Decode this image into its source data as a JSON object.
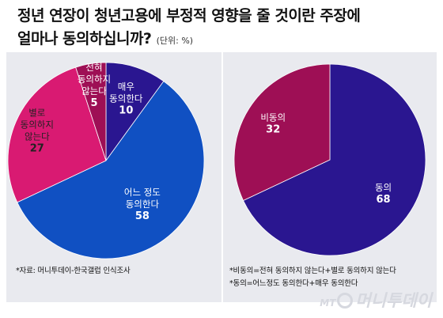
{
  "title_line1": "정년 연장이 청년고용에 부정적 영향을 줄 것이란 주장에",
  "title_line2": "얼마나 동의하십니까?",
  "unit": "(단위: %)",
  "chart_data": [
    {
      "type": "pie",
      "name": "",
      "start_angle_deg": 0,
      "direction": "clockwise",
      "slices": [
        {
          "label_lines": [
            "매우",
            "동의한다"
          ],
          "value": 10,
          "color": "#2a1690",
          "text_color": "#ffffff"
        },
        {
          "label_lines": [
            "어느 정도",
            "동의한다"
          ],
          "value": 58,
          "color": "#1050c2",
          "text_color": "#ffffff"
        },
        {
          "label_lines": [
            "별로",
            "동의하지",
            "않는다"
          ],
          "value": 27,
          "color": "#d91a72",
          "text_color": "#222222"
        },
        {
          "label_lines": [
            "전혀",
            "동의하지",
            "않는다"
          ],
          "value": 5,
          "color": "#9e0f55",
          "text_color": "#ffffff"
        }
      ]
    },
    {
      "type": "pie",
      "name": "",
      "start_angle_deg": 0,
      "direction": "clockwise",
      "slices": [
        {
          "label_lines": [
            "동의"
          ],
          "value": 68,
          "color": "#2a1690",
          "text_color": "#ffffff"
        },
        {
          "label_lines": [
            "비동의"
          ],
          "value": 32,
          "color": "#9e0f55",
          "text_color": "#ffffff"
        }
      ]
    }
  ],
  "footnotes": {
    "source": "*자료: 머니투데이-한국갤럽 인식조사",
    "note1": "*비동의=전혀 동의하지 않는다+별로 동의하지 않는다",
    "note2": "*동의=어느정도 동의한다+매우 동의한다"
  },
  "logo": {
    "mt": "MT",
    "text": "머니투데이"
  }
}
